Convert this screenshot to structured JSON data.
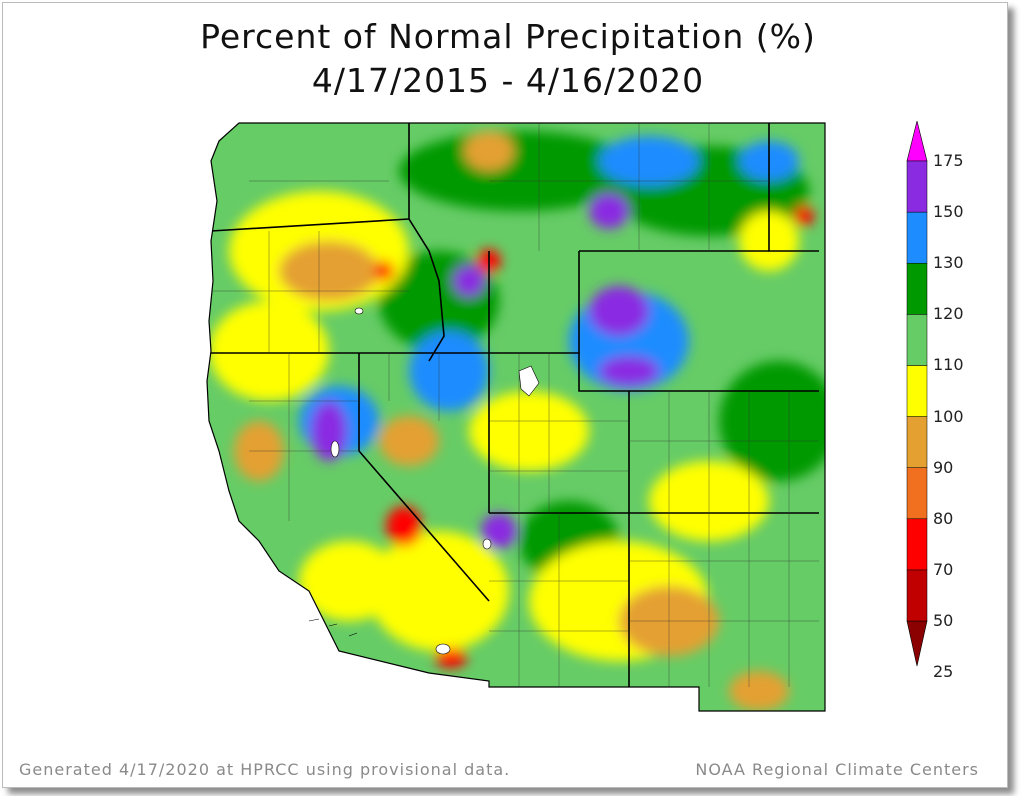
{
  "title": {
    "line1": "Percent of Normal Precipitation (%)",
    "line2": "4/17/2015 - 4/16/2020"
  },
  "footer": {
    "left": "Generated 4/17/2020 at HPRCC using provisional data.",
    "right": "NOAA Regional Climate Centers"
  },
  "legend": {
    "labels": [
      "175",
      "150",
      "130",
      "120",
      "110",
      "100",
      "90",
      "80",
      "70",
      "50",
      "25"
    ],
    "colors": [
      "#8b0000",
      "#c00000",
      "#ff0000",
      "#f07020",
      "#e4a030",
      "#ffff00",
      "#66cc66",
      "#009900",
      "#1c8cff",
      "#8a2be2",
      "#ff00ff"
    ]
  },
  "map": {
    "region": "Western United States",
    "palette": {
      "water": "#ffffff",
      "base": "#66cc66"
    }
  }
}
